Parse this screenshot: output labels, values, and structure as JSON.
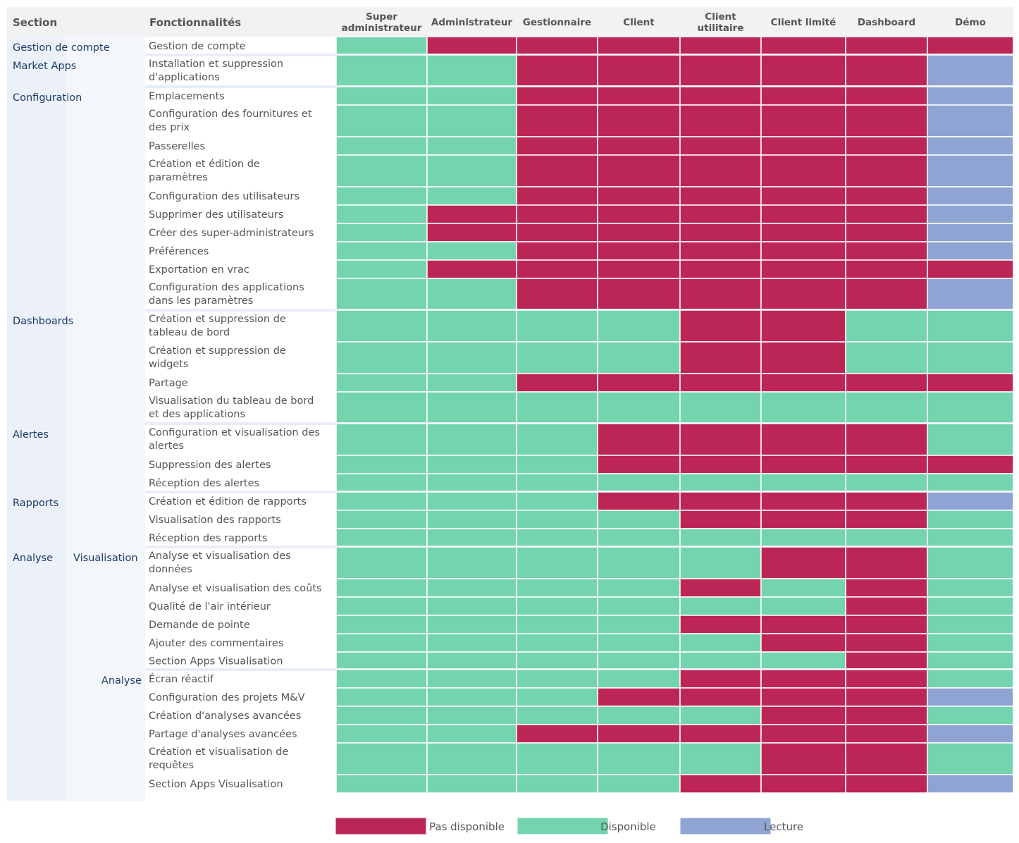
{
  "chart_data": {
    "type": "heatmap",
    "title": "",
    "header": {
      "section": "Section",
      "feature": "Fonctionnalités"
    },
    "roles": [
      [
        "Super",
        "administrateur"
      ],
      [
        "Administrateur"
      ],
      [
        "Gestionnaire"
      ],
      [
        "Client"
      ],
      [
        "Client",
        "utilitaire"
      ],
      [
        "Client limité"
      ],
      [
        "Dashboard"
      ],
      [
        "Démo"
      ]
    ],
    "legend": [
      {
        "code": "N",
        "label": "Pas disponible",
        "color": "#bc2656"
      },
      {
        "code": "Y",
        "label": "Disponible",
        "color": "#74d4ad"
      },
      {
        "code": "R",
        "label": "Lecture",
        "color": "#8fa4d2"
      }
    ],
    "groups": [
      {
        "section": "Gestion de compte",
        "subsection": "",
        "features": [
          {
            "name": [
              "Gestion de compte"
            ],
            "access": "YNNNNNNN"
          }
        ]
      },
      {
        "section": "Market Apps",
        "subsection": "",
        "features": [
          {
            "name": [
              "Installation et suppression",
              "d'applications"
            ],
            "access": "YYNNNNNR"
          }
        ]
      },
      {
        "section": "Configuration",
        "subsection": "",
        "features": [
          {
            "name": [
              "Emplacements"
            ],
            "access": "YYNNNNNR"
          },
          {
            "name": [
              "Configuration des fournitures et",
              "des prix"
            ],
            "access": "YYNNNNNR"
          },
          {
            "name": [
              "Passerelles"
            ],
            "access": "YYNNNNNR"
          },
          {
            "name": [
              "Création et édition de",
              "paramètres"
            ],
            "access": "YYNNNNNR"
          },
          {
            "name": [
              "Configuration des utilisateurs"
            ],
            "access": "YYNNNNNR"
          },
          {
            "name": [
              "Supprimer des utilisateurs"
            ],
            "access": "YNNNNNNR"
          },
          {
            "name": [
              "Créer des super-administrateurs"
            ],
            "access": "YNNNNNNR"
          },
          {
            "name": [
              "Préférences"
            ],
            "access": "YYNNNNNR"
          },
          {
            "name": [
              "Exportation en vrac"
            ],
            "access": "YNNNNNNN"
          },
          {
            "name": [
              "Configuration des applications",
              "dans les paramètres"
            ],
            "access": "YYNNNNNR"
          }
        ]
      },
      {
        "section": "Dashboards",
        "subsection": "",
        "features": [
          {
            "name": [
              "Création et suppression de",
              "tableau de bord"
            ],
            "access": "YYYYNNYY"
          },
          {
            "name": [
              "Création et suppression de",
              "widgets"
            ],
            "access": "YYYYNNYY"
          },
          {
            "name": [
              "Partage"
            ],
            "access": "YYNNNNNN"
          },
          {
            "name": [
              "Visualisation du tableau de bord",
              "et des applications"
            ],
            "access": "YYYYYYYY"
          }
        ]
      },
      {
        "section": "Alertes",
        "subsection": "",
        "features": [
          {
            "name": [
              "Configuration et visualisation des",
              "alertes"
            ],
            "access": "YYYNNNNY"
          },
          {
            "name": [
              "Suppression des alertes"
            ],
            "access": "YYYNNNNN"
          },
          {
            "name": [
              "Réception des alertes"
            ],
            "access": "YYYYYYYY"
          }
        ]
      },
      {
        "section": "Rapports",
        "subsection": "",
        "features": [
          {
            "name": [
              "Création et édition de rapports"
            ],
            "access": "YYYNNNNR"
          },
          {
            "name": [
              "Visualisation des rapports"
            ],
            "access": "YYYYNNNY"
          },
          {
            "name": [
              "Réception des rapports"
            ],
            "access": "YYYYYYYY"
          }
        ]
      },
      {
        "section": "Analyse",
        "subsection": "Visualisation",
        "features": [
          {
            "name": [
              "Analyse et visualisation des",
              "données"
            ],
            "access": "YYYYYNNY"
          },
          {
            "name": [
              "Analyse et visualisation des coûts"
            ],
            "access": "YYYYNYNY"
          },
          {
            "name": [
              "Qualité de l'air intérieur"
            ],
            "access": "YYYYYYNY"
          },
          {
            "name": [
              "Demande de pointe"
            ],
            "access": "YYYYNNNY"
          },
          {
            "name": [
              "Ajouter des commentaires"
            ],
            "access": "YYYYYNNY"
          },
          {
            "name": [
              "Section Apps Visualisation"
            ],
            "access": "YYYYYYNY"
          }
        ]
      },
      {
        "section": "",
        "subsection": "Analyse",
        "features": [
          {
            "name": [
              "Écran réactif"
            ],
            "access": "YYYYNNNY"
          },
          {
            "name": [
              "Configuration des projets M&V"
            ],
            "access": "YYYNNNNR"
          },
          {
            "name": [
              "Création d'analyses avancées"
            ],
            "access": "YYYYYNNY"
          },
          {
            "name": [
              "Partage d'analyses avancées"
            ],
            "access": "YYNNNNNR"
          },
          {
            "name": [
              "Création et visualisation de",
              "requêtes"
            ],
            "access": "YYYYYNNY"
          },
          {
            "name": [
              "Section Apps Visualisation"
            ],
            "access": "YYYYNNNR"
          }
        ]
      }
    ]
  }
}
